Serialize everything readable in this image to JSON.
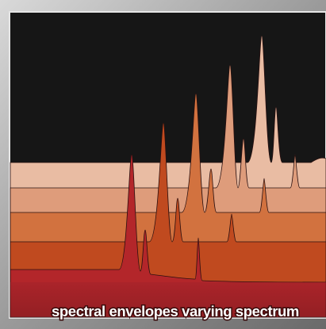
{
  "caption": "spectral envelopes varying spectrum"
}
